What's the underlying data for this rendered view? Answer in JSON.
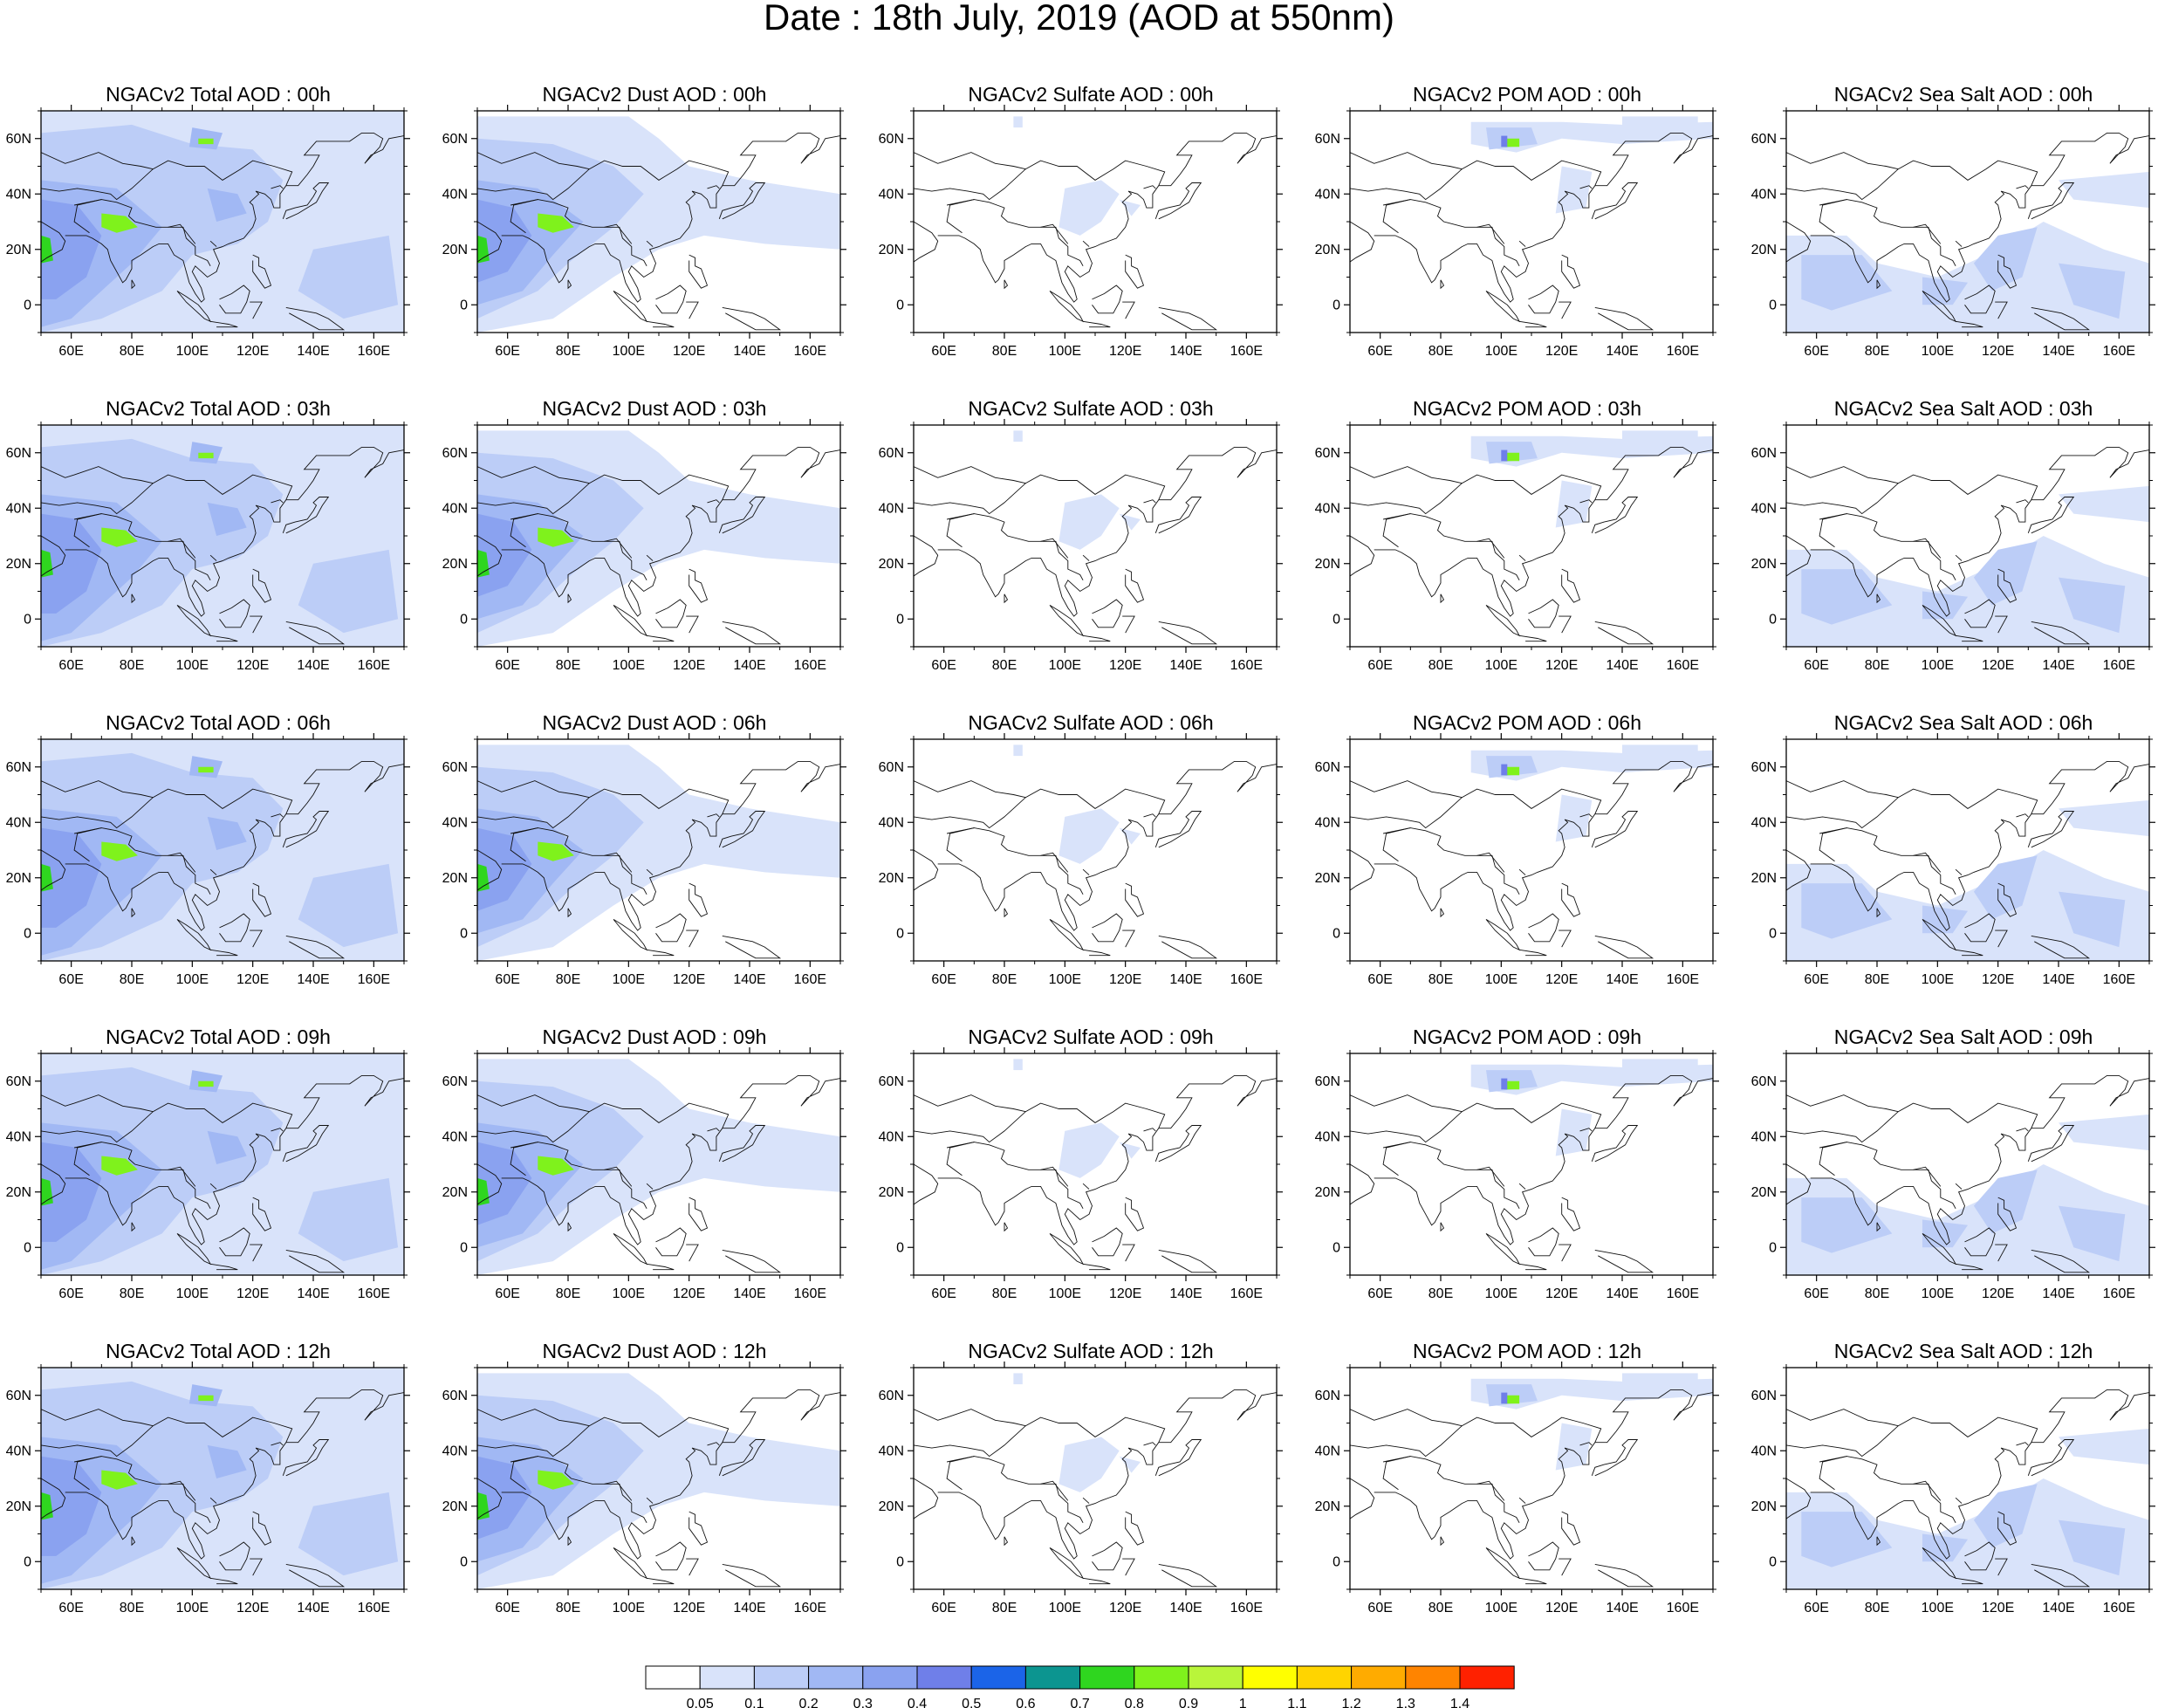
{
  "title": "Date : 18th July, 2019 (AOD at 550nm)",
  "panels": [
    [
      "NGACv2 Total AOD : 00h",
      "NGACv2 Dust AOD : 00h",
      "NGACv2 Sulfate AOD : 00h",
      "NGACv2 POM AOD : 00h",
      "NGACv2 Sea Salt AOD : 00h"
    ],
    [
      "NGACv2 Total AOD : 03h",
      "NGACv2 Dust AOD : 03h",
      "NGACv2 Sulfate AOD : 03h",
      "NGACv2 POM AOD : 03h",
      "NGACv2 Sea Salt AOD : 03h"
    ],
    [
      "NGACv2 Total AOD : 06h",
      "NGACv2 Dust AOD : 06h",
      "NGACv2 Sulfate AOD : 06h",
      "NGACv2 POM AOD : 06h",
      "NGACv2 Sea Salt AOD : 06h"
    ],
    [
      "NGACv2 Total AOD : 09h",
      "NGACv2 Dust AOD : 09h",
      "NGACv2 Sulfate AOD : 09h",
      "NGACv2 POM AOD : 09h",
      "NGACv2 Sea Salt  AOD : 09h"
    ],
    [
      "NGACv2 Total AOD  : 12h",
      "NGACv2 Dust AOD : 12h",
      "NGACv2 Sulfate AOD : 12h",
      "NGACv2 POM  AOD : 12h",
      "NGACv2 Sea Salt  AOD : 12h"
    ]
  ],
  "axes": {
    "lon_ticks": [
      "60E",
      "80E",
      "100E",
      "120E",
      "140E",
      "160E"
    ],
    "lat_ticks": [
      "60N",
      "40N",
      "20N",
      "0"
    ],
    "lon_range": [
      50,
      170
    ],
    "lat_range": [
      -10,
      70
    ]
  },
  "colorbar": {
    "labels": [
      "0.05",
      "0.1",
      "0.2",
      "0.3",
      "0.4",
      "0.5",
      "0.6",
      "0.7",
      "0.8",
      "0.9",
      "1",
      "1.1",
      "1.2",
      "1.3",
      "1.4"
    ],
    "colors": [
      "#ffffff",
      "#d9e3fa",
      "#bccdf7",
      "#a1b8f4",
      "#8aa2f0",
      "#6f7fe9",
      "#1b64e8",
      "#0c9590",
      "#2fd61f",
      "#7ff21c",
      "#b9f53a",
      "#ffff00",
      "#ffd400",
      "#ffab00",
      "#ff8400",
      "#ff2100"
    ]
  }
}
